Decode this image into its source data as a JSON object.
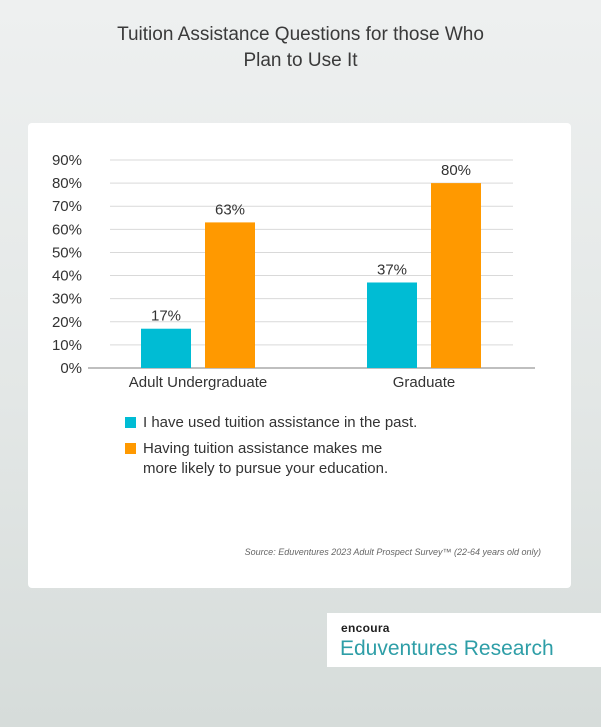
{
  "title_line1": "Tuition Assistance Questions for those Who",
  "title_line2": "Plan to Use It",
  "colors": {
    "teal": "#00bcd4",
    "orange": "#ff9900"
  },
  "chart_data": {
    "type": "bar",
    "categories": [
      "Adult Undergraduate",
      "Graduate"
    ],
    "series": [
      {
        "name": "I have used tuition assistance in the past.",
        "values": [
          17,
          37
        ],
        "color": "#00bcd4"
      },
      {
        "name": "Having tuition assistance makes me more likely to pursue your education.",
        "values": [
          63,
          80
        ],
        "color": "#ff9900"
      }
    ],
    "data_labels": [
      [
        "17%",
        "37%"
      ],
      [
        "63%",
        "80%"
      ]
    ],
    "yticks": [
      "0%",
      "10%",
      "20%",
      "30%",
      "40%",
      "50%",
      "60%",
      "70%",
      "80%",
      "90%"
    ],
    "ylim": [
      0,
      90
    ],
    "grid": true,
    "legend_position": "bottom"
  },
  "legend": {
    "item1": "I have used tuition assistance in the past.",
    "item2_line1": "Having tuition assistance makes me",
    "item2_line2": "more likely to pursue your education."
  },
  "source": "Source: Eduventures 2023 Adult Prospect Survey™ (22-64 years old only)",
  "brand": {
    "top": "encoura",
    "bottom": "Eduventures Research"
  }
}
